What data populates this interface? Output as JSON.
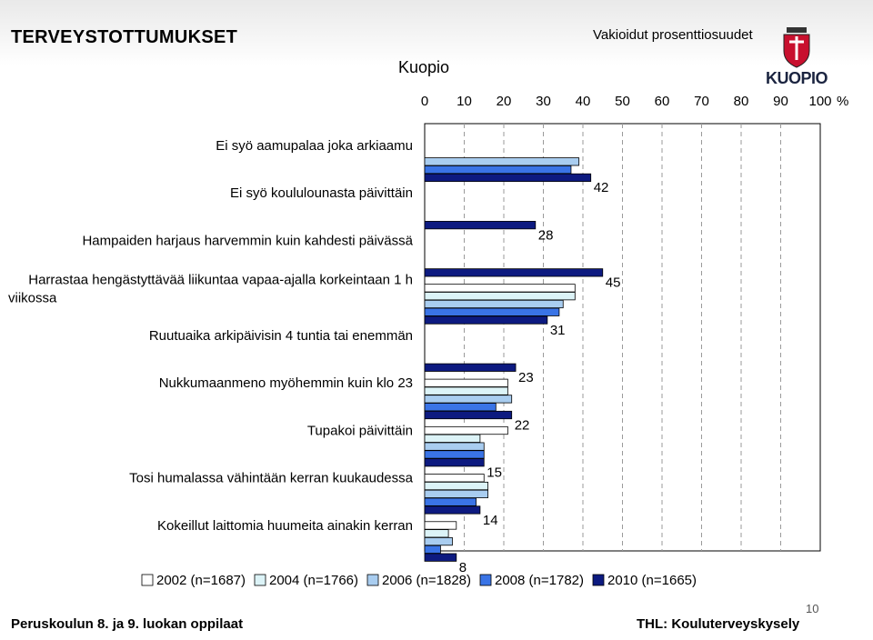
{
  "header": {
    "title": "TERVEYSTOTTUMUKSET",
    "subtitle": "Vakioidut prosenttiosuudet",
    "place": "Kuopio",
    "logo_text": "KUOPIO"
  },
  "footer": {
    "left": "Peruskoulun 8. ja 9. luokan oppilaat",
    "right": "THL: Kouluterveyskysely",
    "page_number": "10"
  },
  "chart_data": {
    "type": "bar",
    "orientation": "horizontal",
    "xlim": [
      0,
      100
    ],
    "x_ticks": [
      "0",
      "10",
      "20",
      "30",
      "40",
      "50",
      "60",
      "70",
      "80",
      "90",
      "100"
    ],
    "x_unit": "%",
    "grid": "vertical dashed",
    "legend_position": "bottom",
    "categories": [
      [
        "Ei syö aamupalaa joka arkiaamu"
      ],
      [
        "Ei syö koululounasta päivittäin"
      ],
      [
        "Hampaiden harjaus harvemmin kuin kahdesti päivässä"
      ],
      [
        "Harrastaa hengästyttävää liikuntaa vapaa-ajalla korkeintaan 1 h",
        "viikossa"
      ],
      [
        "Ruutuaika arkipäivisin 4 tuntia tai enemmän"
      ],
      [
        "Nukkumaanmeno myöhemmin kuin klo 23"
      ],
      [
        "Tupakoi päivittäin"
      ],
      [
        "Tosi humalassa vähintään kerran kuukaudessa"
      ],
      [
        "Kokeillut laittomia huumeita ainakin kerran"
      ]
    ],
    "series": [
      {
        "name": "2002 (n=1687)",
        "color": "#ffffff",
        "values": [
          null,
          null,
          null,
          38,
          null,
          21,
          21,
          15,
          8
        ]
      },
      {
        "name": "2004 (n=1766)",
        "color": "#dcf3f7",
        "values": [
          null,
          null,
          null,
          38,
          null,
          21,
          14,
          16,
          6
        ]
      },
      {
        "name": "2006 (n=1828)",
        "color": "#a9cdf0",
        "values": [
          39,
          null,
          null,
          35,
          null,
          22,
          15,
          16,
          7
        ]
      },
      {
        "name": "2008 (n=1782)",
        "color": "#3a74e6",
        "values": [
          37,
          null,
          null,
          34,
          null,
          18,
          15,
          13,
          4
        ]
      },
      {
        "name": "2010 (n=1665)",
        "color": "#0d1a80",
        "values": [
          42,
          28,
          45,
          31,
          23,
          22,
          15,
          14,
          8
        ]
      }
    ],
    "data_labels": [
      "42",
      "28",
      "45",
      "31",
      "23",
      "22",
      "15",
      "14",
      "8"
    ]
  }
}
